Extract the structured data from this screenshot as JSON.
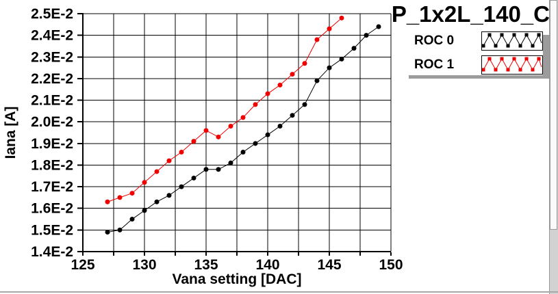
{
  "window": {
    "graph_title": "P_1x2L_140_C"
  },
  "colors": {
    "background": "#ffffff",
    "axis": "#000000",
    "grid": "#000000",
    "roc0": "#000000",
    "roc1": "#ee0000",
    "shadow": "#9c9c9c"
  },
  "legend": {
    "items": [
      {
        "label": "ROC 0",
        "color": "#000000",
        "sample_icon": "zigzag-line-with-dots"
      },
      {
        "label": "ROC 1",
        "color": "#ee0000",
        "sample_icon": "zigzag-line-with-dots"
      }
    ]
  },
  "chart_data": {
    "type": "line",
    "title": "P_1x2L_140_C",
    "xlabel": "Vana setting [DAC]",
    "ylabel": "Iana [A]",
    "xlim": [
      125,
      150
    ],
    "ylim": [
      0.014,
      0.025
    ],
    "grid": true,
    "legend_position": "top-right",
    "marker": "filled-circle",
    "x_grid_step": 2.5,
    "x_ticks": [
      {
        "value": 125,
        "label": "125"
      },
      {
        "value": 130,
        "label": "130"
      },
      {
        "value": 135,
        "label": "135"
      },
      {
        "value": 140,
        "label": "140"
      },
      {
        "value": 145,
        "label": "145"
      },
      {
        "value": 150,
        "label": "150"
      }
    ],
    "y_ticks": [
      {
        "value": 0.025,
        "label": "2.5E-2"
      },
      {
        "value": 0.024,
        "label": "2.4E-2"
      },
      {
        "value": 0.023,
        "label": "2.3E-2"
      },
      {
        "value": 0.022,
        "label": "2.2E-2"
      },
      {
        "value": 0.021,
        "label": "2.1E-2"
      },
      {
        "value": 0.02,
        "label": "2.0E-2"
      },
      {
        "value": 0.019,
        "label": "1.9E-2"
      },
      {
        "value": 0.018,
        "label": "1.8E-2"
      },
      {
        "value": 0.017,
        "label": "1.7E-2"
      },
      {
        "value": 0.016,
        "label": "1.6E-2"
      },
      {
        "value": 0.015,
        "label": "1.5E-2"
      },
      {
        "value": 0.014,
        "label": "1.4E-2"
      }
    ],
    "series": [
      {
        "name": "ROC 0",
        "color": "#000000",
        "x": [
          127,
          128,
          129,
          130,
          131,
          132,
          133,
          134,
          135,
          136,
          137,
          138,
          139,
          140,
          141,
          142,
          143,
          144,
          145,
          146,
          147,
          148,
          149
        ],
        "values": [
          0.0149,
          0.015,
          0.0155,
          0.0159,
          0.0163,
          0.0166,
          0.017,
          0.0174,
          0.0178,
          0.0178,
          0.0181,
          0.0186,
          0.019,
          0.0194,
          0.0198,
          0.0203,
          0.0208,
          0.0219,
          0.0225,
          0.0229,
          0.0234,
          0.024,
          0.0244
        ]
      },
      {
        "name": "ROC 1",
        "color": "#ee0000",
        "x": [
          127,
          128,
          129,
          130,
          131,
          132,
          133,
          134,
          135,
          136,
          137,
          138,
          139,
          140,
          141,
          142,
          143,
          144,
          145,
          146
        ],
        "values": [
          0.0163,
          0.0165,
          0.0167,
          0.0172,
          0.0177,
          0.0182,
          0.0186,
          0.0191,
          0.0196,
          0.0193,
          0.0198,
          0.0202,
          0.0208,
          0.0213,
          0.0217,
          0.0222,
          0.0227,
          0.0238,
          0.0243,
          0.0248
        ]
      }
    ]
  }
}
